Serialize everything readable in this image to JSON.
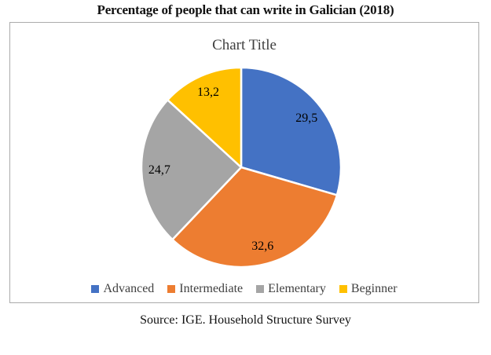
{
  "page": {
    "title": "Percentage of people that can write in Galician (2018)",
    "source_caption": "Source: IGE. Household Structure Survey"
  },
  "chart_data": {
    "type": "pie",
    "title": "Chart Title",
    "categories": [
      "Advanced",
      "Intermediate",
      "Elementary",
      "Beginner"
    ],
    "values": [
      29.5,
      32.6,
      24.7,
      13.2
    ],
    "value_labels": [
      "29,5",
      "32,6",
      "24,7",
      "13,2"
    ],
    "colors": [
      "#4472C4",
      "#ED7D31",
      "#A5A5A5",
      "#FFC000"
    ],
    "slice_border_color": "#FFFFFF",
    "start_angle_deg": 0,
    "direction": "clockwise",
    "legend_position": "bottom"
  }
}
